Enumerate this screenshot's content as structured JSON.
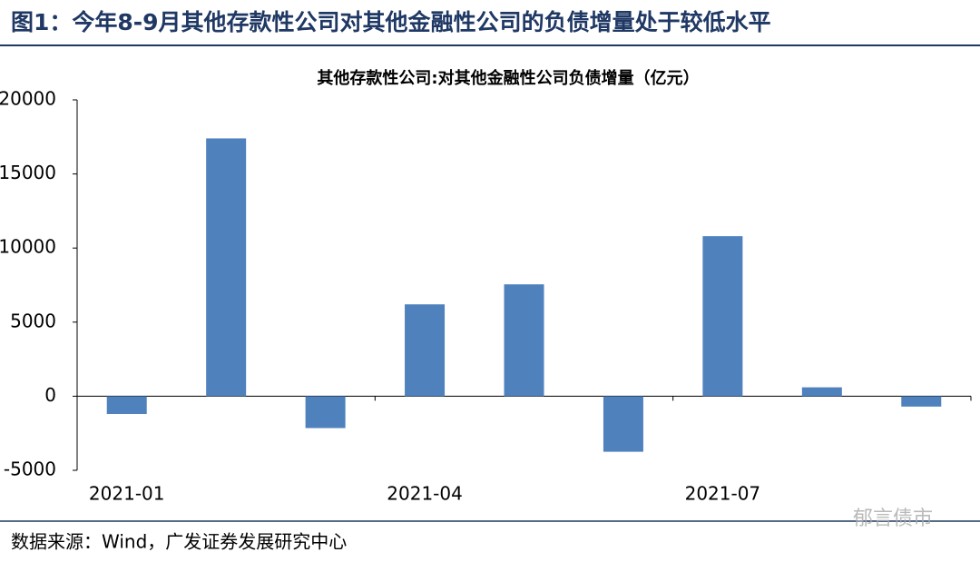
{
  "header": {
    "title": "图1：今年8-9月其他存款性公司对其他金融性公司的负债增量处于较低水平"
  },
  "chart_data": {
    "type": "bar",
    "title": "其他存款性公司:对其他金融性公司负债增量（亿元）",
    "categories": [
      "2021-01",
      null,
      null,
      "2021-04",
      null,
      null,
      "2021-07",
      null,
      null
    ],
    "values": [
      -1200,
      17400,
      -2150,
      6200,
      7550,
      -3750,
      10800,
      600,
      -700
    ],
    "color": "#4f81bd",
    "ylim": [
      -5000,
      20000
    ],
    "yticks": [
      -5000,
      0,
      5000,
      10000,
      15000,
      20000
    ],
    "grid": false
  },
  "footer": {
    "source": "数据来源：Wind，广发证券发展研究中心",
    "watermark": "郁言债市"
  }
}
